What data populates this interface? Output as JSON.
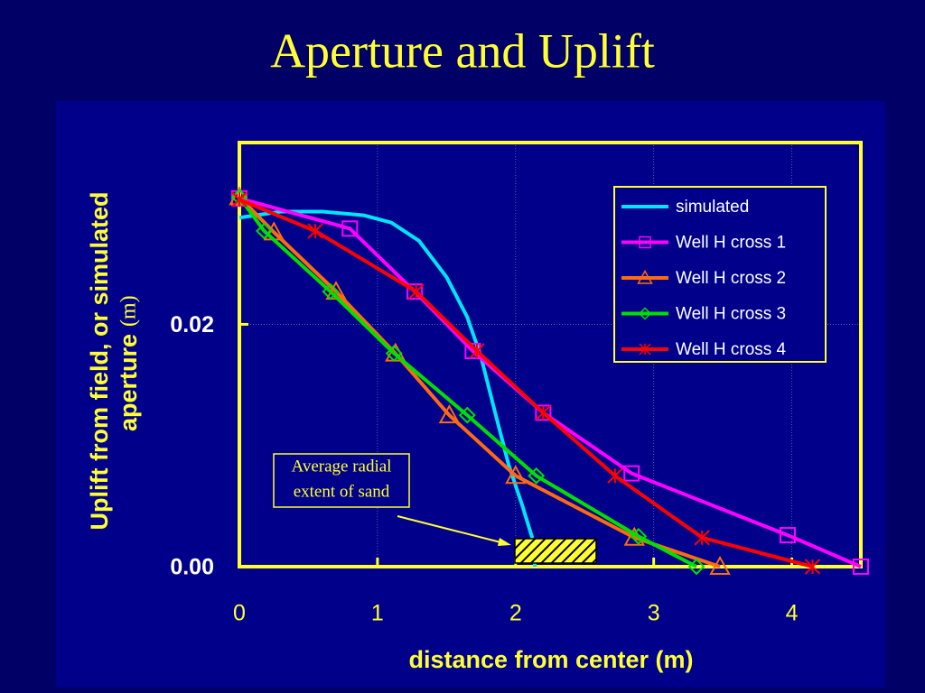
{
  "chart_data": {
    "type": "line",
    "title": "Aperture and Uplift",
    "xlabel": "distance from center (m)",
    "ylabel": {
      "line1": "Uplift from field, or simulated",
      "line2": "aperture",
      "unit": "(m)"
    },
    "xlim": [
      0,
      4.5
    ],
    "ylim": [
      0,
      0.035
    ],
    "xticks": [
      0,
      1,
      2,
      3,
      4
    ],
    "yticks": [
      {
        "value": 0,
        "label": "0.00"
      },
      {
        "value": 0.02,
        "label": "0.02"
      }
    ],
    "grid": true,
    "legend": "upper right",
    "annotation": [
      "Average radial",
      "extent of sand"
    ],
    "series": [
      {
        "name": "simulated",
        "color": "#00e5ff",
        "marker": "none",
        "x": [
          0,
          0.3,
          0.6,
          0.9,
          1.1,
          1.3,
          1.5,
          1.65,
          1.75,
          1.85,
          1.95,
          2.05,
          2.12,
          2.14
        ],
        "values": [
          0.0288,
          0.0293,
          0.0293,
          0.029,
          0.0284,
          0.0269,
          0.0239,
          0.0206,
          0.0173,
          0.0128,
          0.0084,
          0.005,
          0.0024,
          0
        ]
      },
      {
        "name": "Well H cross 1",
        "color": "#ff00ff",
        "marker": "square",
        "x": [
          0,
          0.8,
          1.27,
          1.69,
          2.2,
          2.84,
          3.97,
          4.5
        ],
        "values": [
          0.0304,
          0.0279,
          0.0227,
          0.0178,
          0.0127,
          0.0077,
          0.0026,
          0
        ]
      },
      {
        "name": "Well H cross 2",
        "color": "#ff6a10",
        "marker": "triangle",
        "x": [
          0,
          0.25,
          0.7,
          1.13,
          1.52,
          2.0,
          2.86,
          3.48
        ],
        "values": [
          0.0305,
          0.0276,
          0.0227,
          0.0176,
          0.0125,
          0.0075,
          0.0024,
          0
        ]
      },
      {
        "name": "Well H cross 3",
        "color": "#00e000",
        "marker": "diamond",
        "x": [
          0,
          0.18,
          0.66,
          1.12,
          1.65,
          2.15,
          2.89,
          3.31
        ],
        "values": [
          0.0305,
          0.0277,
          0.0227,
          0.0176,
          0.0125,
          0.0075,
          0.0025,
          0
        ]
      },
      {
        "name": "Well H cross 4",
        "color": "#ff0000",
        "marker": "x",
        "x": [
          0,
          0.55,
          1.28,
          1.72,
          2.2,
          2.72,
          3.35,
          4.15
        ],
        "values": [
          0.0303,
          0.0277,
          0.0227,
          0.0178,
          0.0127,
          0.0075,
          0.0024,
          0
        ]
      }
    ]
  }
}
